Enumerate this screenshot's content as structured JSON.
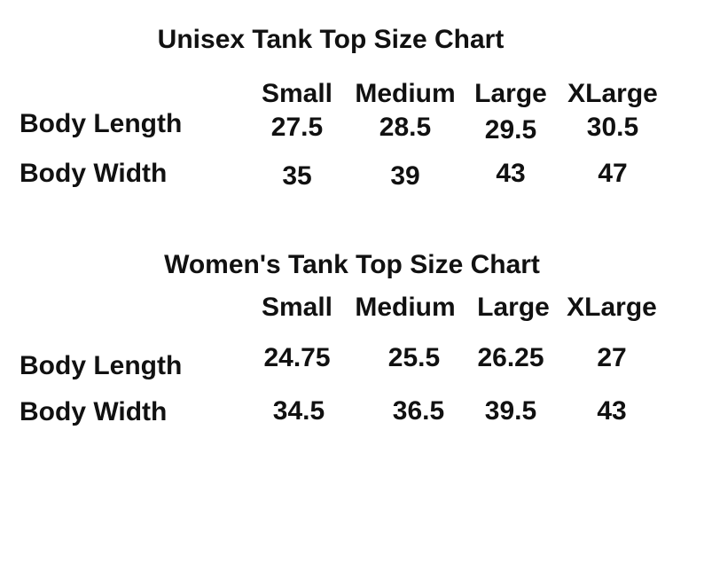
{
  "tables": [
    {
      "title": "Unisex Tank Top Size Chart",
      "columns": [
        "Small",
        "Medium",
        "Large",
        "XLarge"
      ],
      "rows": [
        {
          "label": "Body Length",
          "values": [
            27.5,
            28.5,
            29.5,
            30.5
          ]
        },
        {
          "label": "Body Width",
          "values": [
            35,
            39,
            43,
            47
          ]
        }
      ]
    },
    {
      "title": "Women's Tank Top Size Chart",
      "columns": [
        "Small",
        "Medium",
        "Large",
        "XLarge"
      ],
      "rows": [
        {
          "label": "Body Length",
          "values": [
            24.75,
            25.5,
            26.25,
            27
          ]
        },
        {
          "label": "Body Width",
          "values": [
            34.5,
            36.5,
            39.5,
            43
          ]
        }
      ]
    }
  ]
}
